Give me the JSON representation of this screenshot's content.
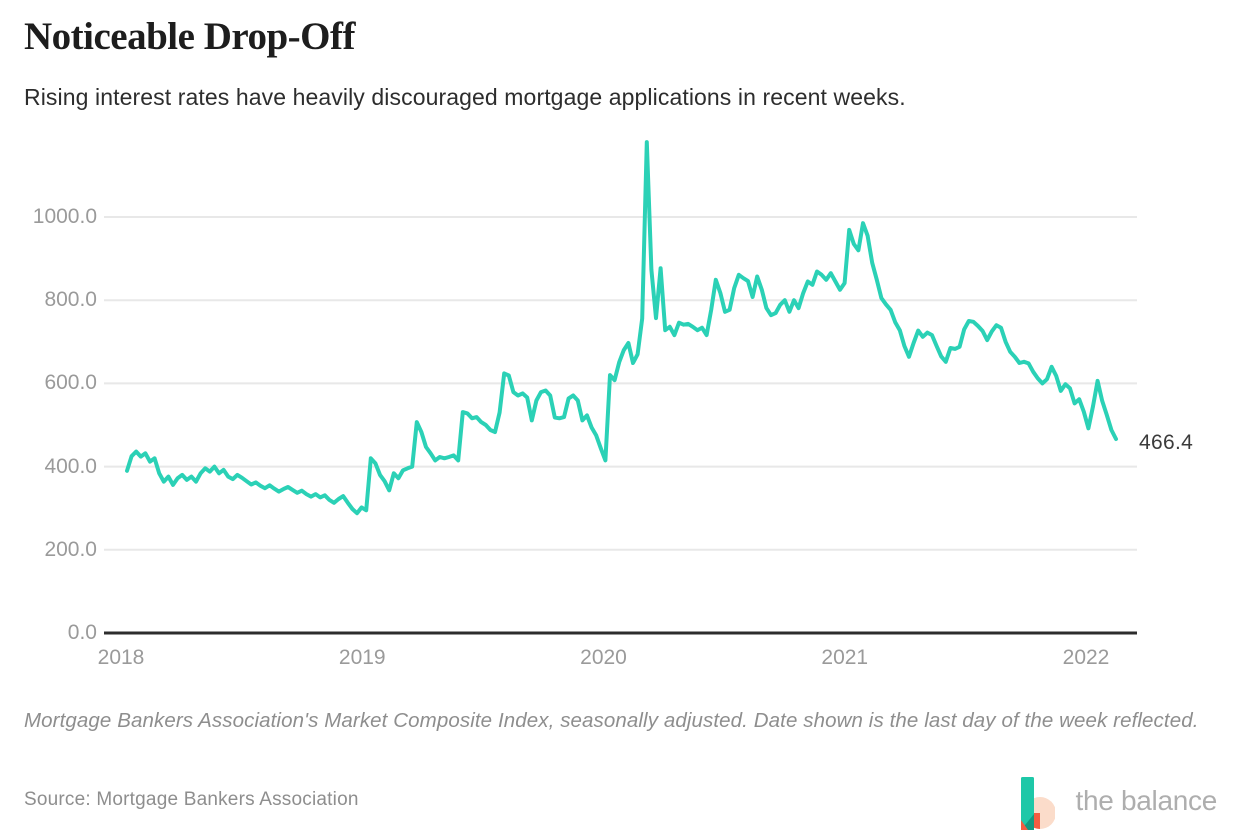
{
  "header": {
    "title": "Noticeable Drop-Off",
    "subtitle": "Rising interest rates have heavily discouraged mortgage applications in recent weeks."
  },
  "footnote": "Mortgage Bankers Association's Market Composite Index, seasonally adjusted. Date shown is the last day of the week reflected.",
  "source": "Source: Mortgage Bankers Association",
  "logo": {
    "text": "the balance"
  },
  "colors": {
    "line": "#2BD1B6",
    "gridline": "#e8e8e8",
    "axis_baseline": "#2d2d2d",
    "tick_text": "#9a9a9a",
    "end_label_text": "#3b3b3b",
    "logo_teal": "#1EC8A8",
    "logo_dark_teal": "#13997F",
    "logo_peach": "#FBDCCA",
    "logo_orange": "#F35C41"
  },
  "chart_data": {
    "type": "line",
    "title": "Noticeable Drop-Off",
    "subtitle": "Rising interest rates have heavily discouraged mortgage applications in recent weeks.",
    "xlabel": "",
    "ylabel": "",
    "grid": true,
    "legend_position": "none",
    "x_unit": "weekly, Jan 2018 - Feb 2022",
    "x_ticks": [
      "2018",
      "2019",
      "2020",
      "2021",
      "2022"
    ],
    "y_ticks": [
      {
        "label": "1000.0",
        "value": 1000
      },
      {
        "label": "800.0",
        "value": 800
      },
      {
        "label": "600.0",
        "value": 600
      },
      {
        "label": "400.0",
        "value": 400
      },
      {
        "label": "200.0",
        "value": 200
      },
      {
        "label": "0.0",
        "value": 0
      }
    ],
    "ylim": [
      0,
      1190
    ],
    "end_label": "466.4",
    "last_value": 466.4,
    "series": [
      {
        "name": "MBA Market Composite Index (seasonally adjusted)",
        "values": [
          390,
          425,
          436,
          424,
          432,
          412,
          420,
          384,
          364,
          376,
          356,
          372,
          380,
          368,
          376,
          364,
          384,
          396,
          388,
          400,
          384,
          392,
          376,
          370,
          380,
          373,
          365,
          357,
          362,
          354,
          348,
          355,
          347,
          340,
          346,
          351,
          344,
          337,
          342,
          334,
          328,
          334,
          326,
          331,
          320,
          313,
          322,
          329,
          313,
          298,
          288,
          302,
          295,
          420,
          408,
          380,
          365,
          343,
          384,
          372,
          391,
          396,
          400,
          507,
          483,
          447,
          432,
          415,
          423,
          420,
          423,
          427,
          415,
          531,
          528,
          516,
          519,
          507,
          500,
          488,
          483,
          530,
          624,
          619,
          579,
          571,
          576,
          566,
          511,
          559,
          579,
          583,
          571,
          518,
          516,
          519,
          564,
          571,
          559,
          511,
          523,
          494,
          475,
          444,
          415,
          620,
          608,
          651,
          680,
          697,
          649,
          670,
          756,
          1180,
          873,
          757,
          877,
          728,
          736,
          716,
          746,
          741,
          743,
          736,
          728,
          734,
          716,
          777,
          849,
          817,
          772,
          777,
          829,
          861,
          853,
          846,
          808,
          857,
          825,
          781,
          764,
          769,
          789,
          800,
          772,
          800,
          781,
          817,
          845,
          837,
          869,
          861,
          849,
          865,
          845,
          825,
          841,
          969,
          935,
          920,
          985,
          955,
          890,
          849,
          805,
          790,
          777,
          747,
          728,
          690,
          664,
          697,
          727,
          712,
          722,
          716,
          690,
          665,
          652,
          685,
          683,
          688,
          730,
          750,
          748,
          738,
          726,
          704,
          725,
          740,
          734,
          700,
          676,
          664,
          649,
          652,
          648,
          628,
          612,
          600,
          610,
          640,
          618,
          582,
          598,
          588,
          552,
          562,
          532,
          492,
          545,
          606,
          558,
          524,
          488,
          466.4
        ]
      }
    ]
  }
}
